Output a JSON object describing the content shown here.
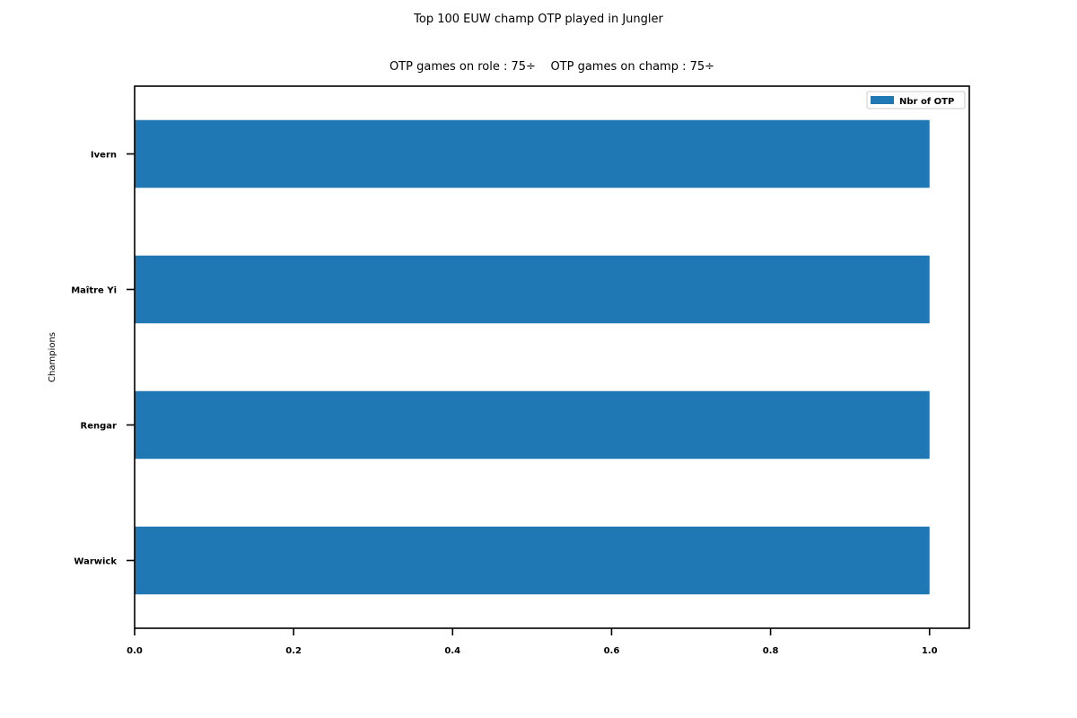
{
  "chart_data": {
    "type": "bar",
    "orientation": "horizontal",
    "title": "Top 100 EUW champ OTP played in Jungler",
    "subtitle": "OTP games on role : 75÷    OTP games on champ : 75÷",
    "xlabel": "",
    "ylabel": "Champions",
    "categories": [
      "Ivern",
      "Maître Yi",
      "Rengar",
      "Warwick"
    ],
    "series": [
      {
        "name": "Nbr of OTP",
        "values": [
          1,
          1,
          1,
          1
        ],
        "color": "#1f77b4"
      }
    ],
    "xlim": [
      0,
      1.05
    ],
    "xticks": [
      "0.0",
      "0.2",
      "0.4",
      "0.6",
      "0.8",
      "1.0"
    ],
    "grid": false,
    "legend": "top-right"
  }
}
